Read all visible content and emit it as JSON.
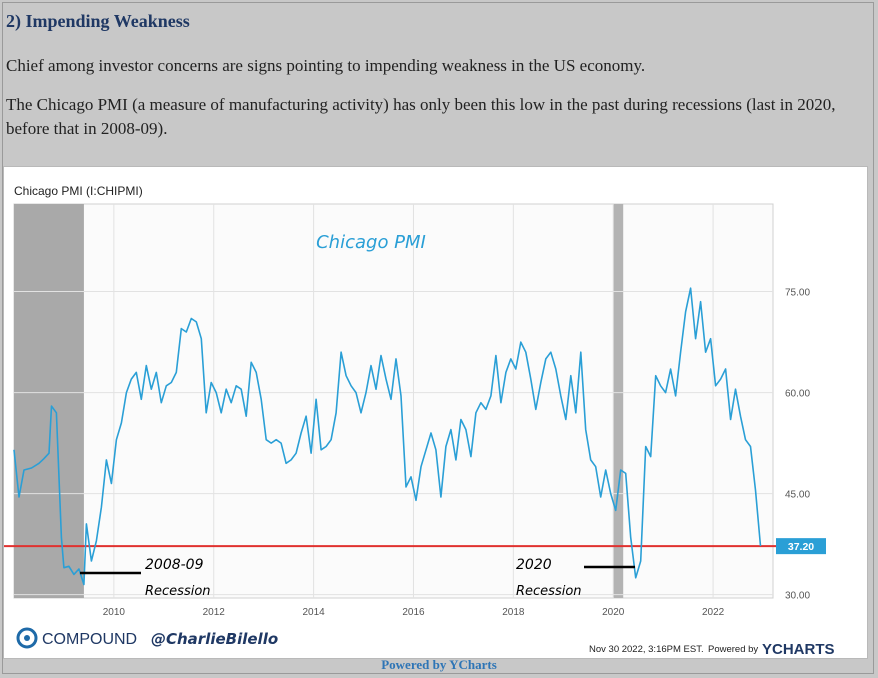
{
  "heading": "2) Impending Weakness",
  "paragraph1": "Chief among investor concerns are signs pointing to impending weakness in the US economy.",
  "paragraph2": "The Chicago PMI (a measure of manufacturing activity) has only been this low in the past during recessions (last in 2020, before that in 2008-09).",
  "footer_powered": "Powered by YCharts",
  "chart_data": {
    "type": "line",
    "title": "Chicago PMI (I:CHIPMI)",
    "annotation_title": "Chicago PMI",
    "x_ticks": [
      "2010",
      "2012",
      "2014",
      "2016",
      "2018",
      "2020",
      "2022"
    ],
    "x_range": [
      2008.0,
      2023.2
    ],
    "y_ticks": [
      "75.00",
      "60.00",
      "45.00",
      "30.00"
    ],
    "y_range": [
      29.5,
      88.0
    ],
    "last_value": 37.2,
    "last_value_label": "37.20",
    "reference_line": 37.2,
    "recession_bands": [
      {
        "start": 2008.0,
        "end": 2009.4,
        "label": "2008-09",
        "sublabel": "Recession"
      },
      {
        "start": 2020.0,
        "end": 2020.2,
        "label": "2020",
        "sublabel": "Recession"
      }
    ],
    "series": [
      {
        "color": "#2a9fd6",
        "points": [
          [
            2008.0,
            51.5
          ],
          [
            2008.1,
            44.5
          ],
          [
            2008.2,
            48.5
          ],
          [
            2008.35,
            48.8
          ],
          [
            2008.5,
            49.5
          ],
          [
            2008.6,
            50.2
          ],
          [
            2008.7,
            51.0
          ],
          [
            2008.75,
            58.0
          ],
          [
            2008.85,
            57.0
          ],
          [
            2008.95,
            38.5
          ],
          [
            2009.0,
            34.0
          ],
          [
            2009.1,
            34.2
          ],
          [
            2009.2,
            33.0
          ],
          [
            2009.3,
            33.8
          ],
          [
            2009.4,
            31.5
          ],
          [
            2009.45,
            40.5
          ],
          [
            2009.55,
            35.0
          ],
          [
            2009.65,
            38.0
          ],
          [
            2009.75,
            43.0
          ],
          [
            2009.85,
            50.0
          ],
          [
            2009.95,
            46.5
          ],
          [
            2010.05,
            53.0
          ],
          [
            2010.15,
            55.5
          ],
          [
            2010.25,
            60.0
          ],
          [
            2010.35,
            62.0
          ],
          [
            2010.45,
            63.0
          ],
          [
            2010.55,
            59.0
          ],
          [
            2010.65,
            64.0
          ],
          [
            2010.75,
            60.5
          ],
          [
            2010.85,
            63.0
          ],
          [
            2010.95,
            58.5
          ],
          [
            2011.05,
            61.0
          ],
          [
            2011.15,
            61.5
          ],
          [
            2011.25,
            63.0
          ],
          [
            2011.35,
            69.5
          ],
          [
            2011.45,
            69.0
          ],
          [
            2011.55,
            71.0
          ],
          [
            2011.65,
            70.5
          ],
          [
            2011.75,
            68.0
          ],
          [
            2011.85,
            57.0
          ],
          [
            2011.95,
            61.5
          ],
          [
            2012.05,
            60.0
          ],
          [
            2012.15,
            57.0
          ],
          [
            2012.25,
            60.5
          ],
          [
            2012.35,
            58.5
          ],
          [
            2012.45,
            61.0
          ],
          [
            2012.55,
            60.5
          ],
          [
            2012.65,
            56.5
          ],
          [
            2012.75,
            64.5
          ],
          [
            2012.85,
            63.0
          ],
          [
            2012.95,
            59.0
          ],
          [
            2013.05,
            53.0
          ],
          [
            2013.15,
            52.5
          ],
          [
            2013.25,
            53.0
          ],
          [
            2013.35,
            52.5
          ],
          [
            2013.45,
            49.5
          ],
          [
            2013.55,
            50.0
          ],
          [
            2013.65,
            51.0
          ],
          [
            2013.75,
            54.0
          ],
          [
            2013.85,
            56.5
          ],
          [
            2013.95,
            51.0
          ],
          [
            2014.05,
            59.0
          ],
          [
            2014.15,
            51.5
          ],
          [
            2014.25,
            52.0
          ],
          [
            2014.35,
            53.0
          ],
          [
            2014.45,
            57.0
          ],
          [
            2014.55,
            66.0
          ],
          [
            2014.65,
            62.5
          ],
          [
            2014.75,
            61.0
          ],
          [
            2014.85,
            60.0
          ],
          [
            2014.95,
            57.0
          ],
          [
            2015.05,
            60.0
          ],
          [
            2015.15,
            64.0
          ],
          [
            2015.25,
            60.5
          ],
          [
            2015.35,
            65.5
          ],
          [
            2015.45,
            62.0
          ],
          [
            2015.55,
            59.0
          ],
          [
            2015.65,
            65.0
          ],
          [
            2015.75,
            59.5
          ],
          [
            2015.85,
            46.0
          ],
          [
            2015.95,
            47.5
          ],
          [
            2016.05,
            44.0
          ],
          [
            2016.15,
            49.0
          ],
          [
            2016.25,
            51.5
          ],
          [
            2016.35,
            54.0
          ],
          [
            2016.45,
            51.5
          ],
          [
            2016.55,
            44.5
          ],
          [
            2016.65,
            52.0
          ],
          [
            2016.75,
            54.5
          ],
          [
            2016.85,
            50.0
          ],
          [
            2016.95,
            56.0
          ],
          [
            2017.05,
            54.5
          ],
          [
            2017.15,
            50.5
          ],
          [
            2017.25,
            57.0
          ],
          [
            2017.35,
            58.5
          ],
          [
            2017.45,
            57.5
          ],
          [
            2017.55,
            59.5
          ],
          [
            2017.65,
            65.5
          ],
          [
            2017.75,
            58.5
          ],
          [
            2017.85,
            63.0
          ],
          [
            2017.95,
            65.0
          ],
          [
            2018.05,
            63.5
          ],
          [
            2018.15,
            67.5
          ],
          [
            2018.25,
            66.0
          ],
          [
            2018.35,
            62.0
          ],
          [
            2018.45,
            57.5
          ],
          [
            2018.55,
            61.5
          ],
          [
            2018.65,
            65.0
          ],
          [
            2018.75,
            66.0
          ],
          [
            2018.85,
            63.5
          ],
          [
            2018.95,
            59.5
          ],
          [
            2019.05,
            56.0
          ],
          [
            2019.15,
            62.5
          ],
          [
            2019.25,
            57.0
          ],
          [
            2019.35,
            66.0
          ],
          [
            2019.45,
            54.5
          ],
          [
            2019.55,
            50.0
          ],
          [
            2019.65,
            49.0
          ],
          [
            2019.75,
            44.5
          ],
          [
            2019.85,
            48.5
          ],
          [
            2019.95,
            45.0
          ],
          [
            2020.05,
            42.5
          ],
          [
            2020.15,
            48.5
          ],
          [
            2020.25,
            48.0
          ],
          [
            2020.35,
            38.5
          ],
          [
            2020.45,
            32.5
          ],
          [
            2020.55,
            35.0
          ],
          [
            2020.65,
            52.0
          ],
          [
            2020.75,
            50.5
          ],
          [
            2020.85,
            62.5
          ],
          [
            2020.95,
            61.0
          ],
          [
            2021.05,
            60.0
          ],
          [
            2021.15,
            63.5
          ],
          [
            2021.25,
            59.5
          ],
          [
            2021.35,
            66.0
          ],
          [
            2021.45,
            72.0
          ],
          [
            2021.55,
            75.5
          ],
          [
            2021.65,
            68.0
          ],
          [
            2021.75,
            73.5
          ],
          [
            2021.85,
            66.0
          ],
          [
            2021.95,
            68.0
          ],
          [
            2022.05,
            61.0
          ],
          [
            2022.15,
            62.0
          ],
          [
            2022.25,
            63.5
          ],
          [
            2022.35,
            56.0
          ],
          [
            2022.45,
            60.5
          ],
          [
            2022.55,
            56.5
          ],
          [
            2022.65,
            53.0
          ],
          [
            2022.75,
            52.0
          ],
          [
            2022.85,
            45.5
          ],
          [
            2022.95,
            37.2
          ]
        ]
      }
    ]
  },
  "branding": {
    "compound_label": "COMPOUND",
    "handle": "@CharlieBilello",
    "timestamp": "Nov 30 2022, 3:16PM EST.",
    "powered_by": "Powered by",
    "ycharts": "YCHARTS"
  }
}
